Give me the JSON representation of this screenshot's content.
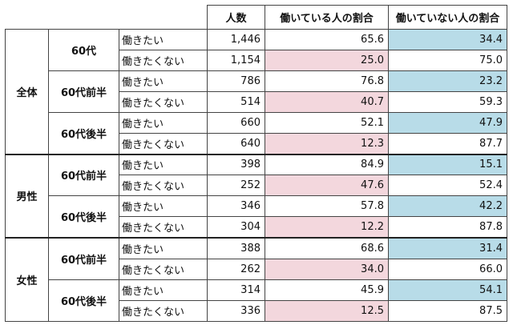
{
  "headers": {
    "count": "人数",
    "working": "働いている人の割合",
    "not_working": "働いていない人の割合"
  },
  "colors": {
    "highlight_pink": "#f3d7dd",
    "highlight_blue": "#b8dce8"
  },
  "groups": [
    {
      "label": "全体",
      "subs": [
        {
          "label": "60代",
          "rows": [
            {
              "label": "働きたい",
              "count": "1,446",
              "working": "65.6",
              "not_working": "34.4",
              "hl": "blue"
            },
            {
              "label": "働きたくない",
              "count": "1,154",
              "working": "25.0",
              "not_working": "75.0",
              "hl": "pink"
            }
          ]
        },
        {
          "label": "60代前半",
          "rows": [
            {
              "label": "働きたい",
              "count": "786",
              "working": "76.8",
              "not_working": "23.2",
              "hl": "blue"
            },
            {
              "label": "働きたくない",
              "count": "514",
              "working": "40.7",
              "not_working": "59.3",
              "hl": "pink"
            }
          ]
        },
        {
          "label": "60代後半",
          "rows": [
            {
              "label": "働きたい",
              "count": "660",
              "working": "52.1",
              "not_working": "47.9",
              "hl": "blue"
            },
            {
              "label": "働きたくない",
              "count": "640",
              "working": "12.3",
              "not_working": "87.7",
              "hl": "pink"
            }
          ]
        }
      ]
    },
    {
      "label": "男性",
      "subs": [
        {
          "label": "60代前半",
          "rows": [
            {
              "label": "働きたい",
              "count": "398",
              "working": "84.9",
              "not_working": "15.1",
              "hl": "blue"
            },
            {
              "label": "働きたくない",
              "count": "252",
              "working": "47.6",
              "not_working": "52.4",
              "hl": "pink"
            }
          ]
        },
        {
          "label": "60代後半",
          "rows": [
            {
              "label": "働きたい",
              "count": "346",
              "working": "57.8",
              "not_working": "42.2",
              "hl": "blue"
            },
            {
              "label": "働きたくない",
              "count": "304",
              "working": "12.2",
              "not_working": "87.8",
              "hl": "pink"
            }
          ]
        }
      ]
    },
    {
      "label": "女性",
      "subs": [
        {
          "label": "60代前半",
          "rows": [
            {
              "label": "働きたい",
              "count": "388",
              "working": "68.6",
              "not_working": "31.4",
              "hl": "blue"
            },
            {
              "label": "働きたくない",
              "count": "262",
              "working": "34.0",
              "not_working": "66.0",
              "hl": "pink"
            }
          ]
        },
        {
          "label": "60代後半",
          "rows": [
            {
              "label": "働きたい",
              "count": "314",
              "working": "45.9",
              "not_working": "54.1",
              "hl": "blue"
            },
            {
              "label": "働きたくない",
              "count": "336",
              "working": "12.5",
              "not_working": "87.5",
              "hl": "pink"
            }
          ]
        }
      ]
    }
  ]
}
